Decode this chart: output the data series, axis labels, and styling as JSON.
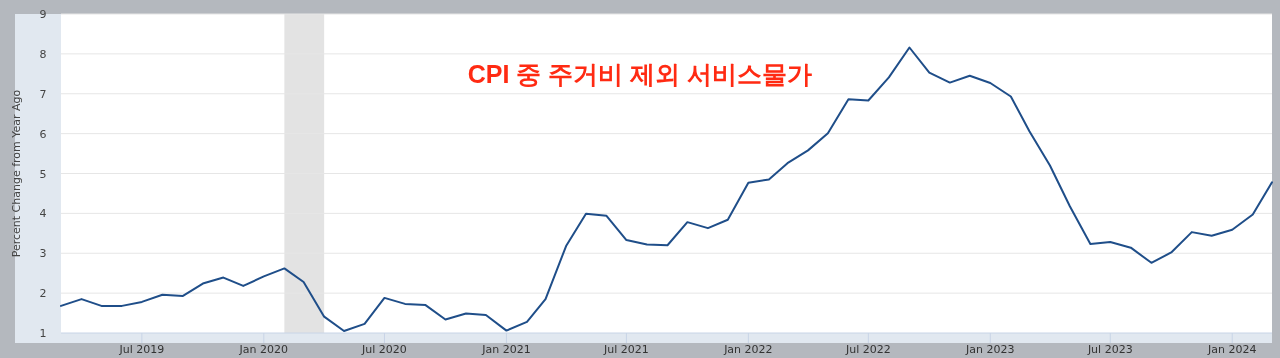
{
  "chart_data": {
    "type": "line",
    "title": "CPI 중 주거비 제외 서비스물가",
    "ylabel": "Percent Change from Year Ago",
    "x": [
      "2019-03",
      "2019-04",
      "2019-05",
      "2019-06",
      "2019-07",
      "2019-08",
      "2019-09",
      "2019-10",
      "2019-11",
      "2019-12",
      "2020-01",
      "2020-02",
      "2020-03",
      "2020-04",
      "2020-05",
      "2020-06",
      "2020-07",
      "2020-08",
      "2020-09",
      "2020-10",
      "2020-11",
      "2020-12",
      "2021-01",
      "2021-02",
      "2021-03",
      "2021-04",
      "2021-05",
      "2021-06",
      "2021-07",
      "2021-08",
      "2021-09",
      "2021-10",
      "2021-11",
      "2021-12",
      "2022-01",
      "2022-02",
      "2022-03",
      "2022-04",
      "2022-05",
      "2022-06",
      "2022-07",
      "2022-08",
      "2022-09",
      "2022-10",
      "2022-11",
      "2022-12",
      "2023-01",
      "2023-02",
      "2023-03",
      "2023-04",
      "2023-05",
      "2023-06",
      "2023-07",
      "2023-08",
      "2023-09",
      "2023-10",
      "2023-11",
      "2023-12",
      "2024-01",
      "2024-02",
      "2024-03"
    ],
    "series": [
      {
        "color": "#1f4e89",
        "values": [
          1.68,
          1.85,
          1.68,
          1.68,
          1.78,
          1.96,
          1.93,
          2.24,
          2.39,
          2.18,
          2.42,
          2.62,
          2.28,
          1.41,
          1.05,
          1.23,
          1.88,
          1.73,
          1.7,
          1.34,
          1.49,
          1.45,
          1.06,
          1.28,
          1.85,
          3.18,
          3.99,
          3.94,
          3.33,
          3.22,
          3.2,
          3.78,
          3.63,
          3.84,
          4.77,
          4.85,
          5.26,
          5.58,
          6.01,
          6.86,
          6.83,
          7.41,
          8.16,
          7.53,
          7.28,
          7.45,
          7.27,
          6.93,
          6.06,
          5.2,
          4.18,
          3.23,
          3.28,
          3.14,
          2.76,
          3.02,
          3.53,
          3.44,
          3.59,
          3.97,
          4.78
        ]
      }
    ],
    "xlim": [
      "2019-03",
      "2024-03"
    ],
    "xticks": [
      {
        "value": "2019-07",
        "label": "Jul 2019"
      },
      {
        "value": "2020-01",
        "label": "Jan 2020"
      },
      {
        "value": "2020-07",
        "label": "Jul 2020"
      },
      {
        "value": "2021-01",
        "label": "Jan 2021"
      },
      {
        "value": "2021-07",
        "label": "Jul 2021"
      },
      {
        "value": "2022-01",
        "label": "Jan 2022"
      },
      {
        "value": "2022-07",
        "label": "Jul 2022"
      },
      {
        "value": "2023-01",
        "label": "Jan 2023"
      },
      {
        "value": "2023-07",
        "label": "Jul 2023"
      },
      {
        "value": "2024-01",
        "label": "Jan 2024"
      }
    ],
    "ylim": [
      1,
      9
    ],
    "yticks": [
      1,
      2,
      3,
      4,
      5,
      6,
      7,
      8,
      9
    ],
    "bands": [
      {
        "axis": "x",
        "from": "2020-02",
        "to": "2020-04",
        "color": "#e3e3e3"
      }
    ],
    "grid": "y",
    "line_style": "solid",
    "marker": "none"
  }
}
